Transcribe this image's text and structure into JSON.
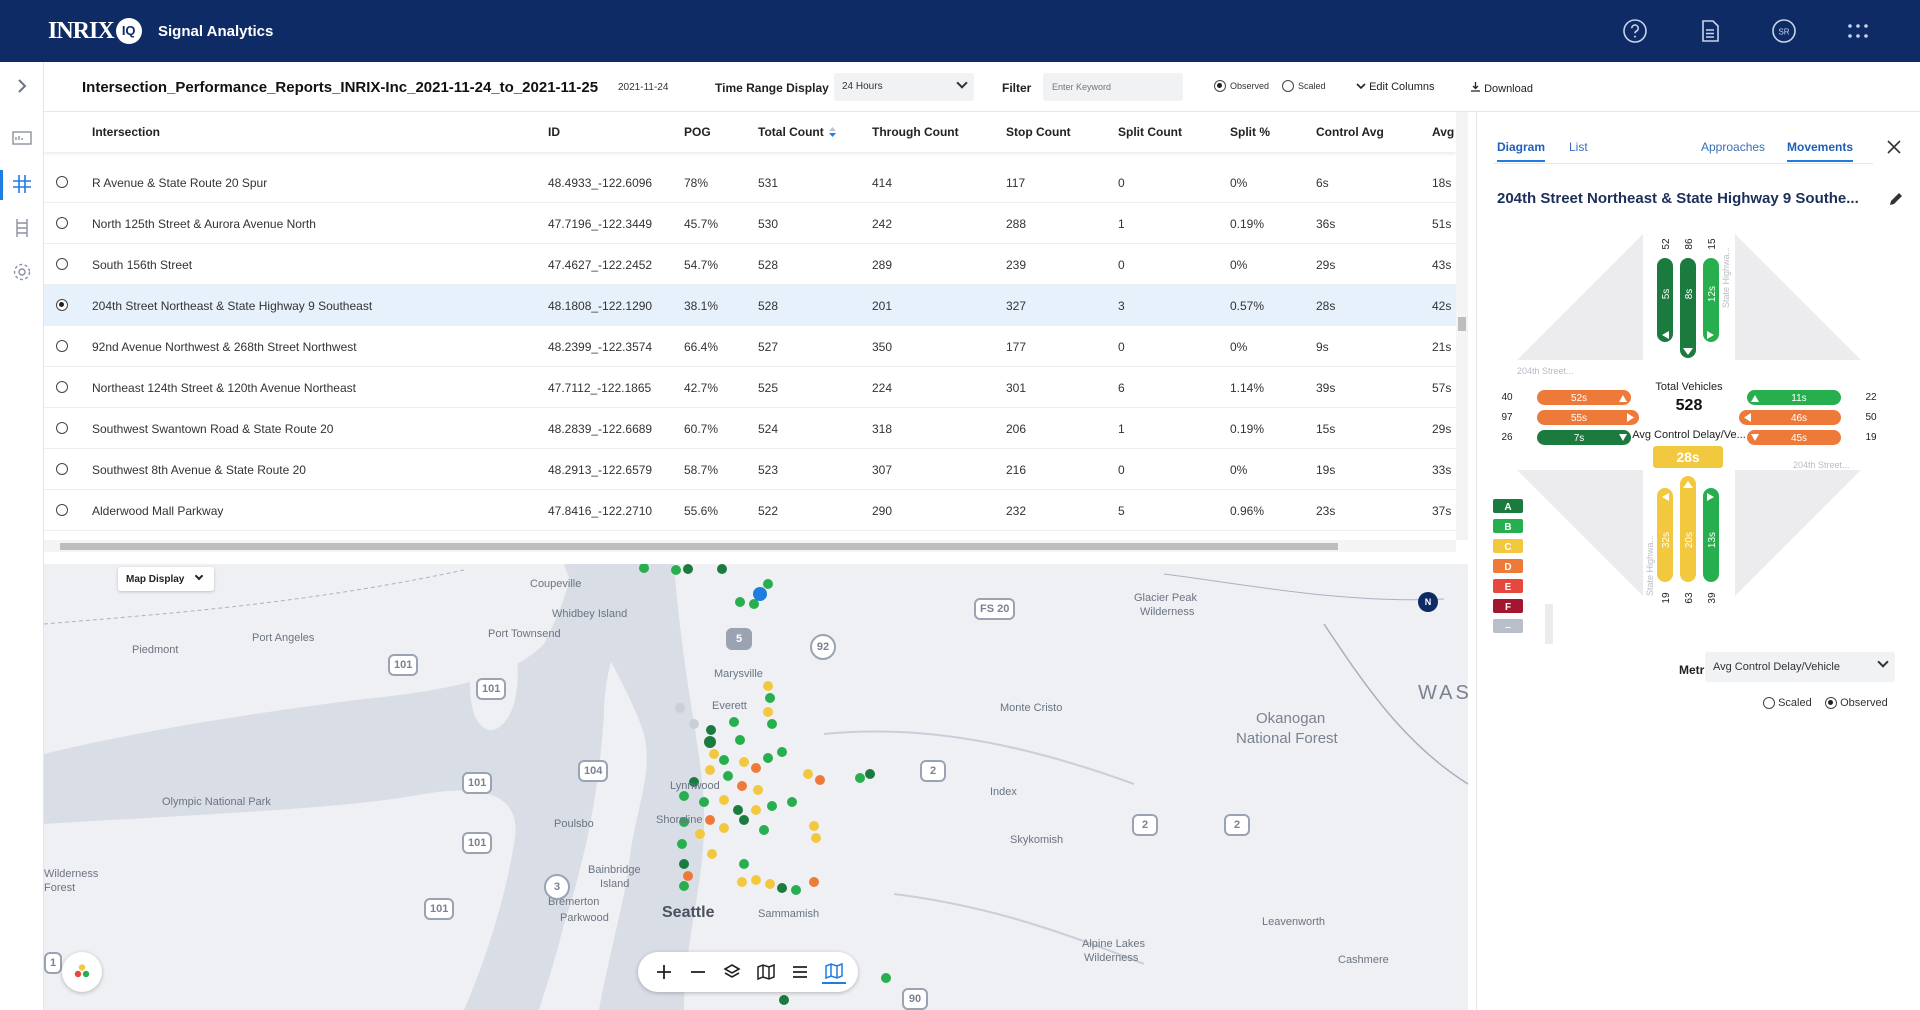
{
  "app": {
    "logo": "INRIX",
    "logo_badge": "IQ",
    "name": "Signal Analytics"
  },
  "toolbar": {
    "title": "Intersection_Performance_Reports_INRIX-Inc_2021-11-24_to_2021-11-25",
    "date": "2021-11-24",
    "time_range_label": "Time Range Display",
    "time_range_value": "24 Hours",
    "filter_label": "Filter",
    "filter_placeholder": "Enter Keyword",
    "observed_label": "Observed",
    "scaled_label": "Scaled",
    "edit_columns": "Edit Columns",
    "download": "Download"
  },
  "table": {
    "columns": [
      "Intersection",
      "ID",
      "POG",
      "Total Count",
      "Through Count",
      "Stop Count",
      "Split Count",
      "Split %",
      "Control Avg",
      "Avg"
    ],
    "rows": [
      {
        "name": "R Avenue & State Route 20 Spur",
        "id": "48.4933_-122.6096",
        "pog": "78%",
        "total": "531",
        "through": "414",
        "stop": "117",
        "split": "0",
        "split_pct": "0%",
        "control": "6s",
        "avg": "18s",
        "selected": false
      },
      {
        "name": "North 125th Street & Aurora Avenue North",
        "id": "47.7196_-122.3449",
        "pog": "45.7%",
        "total": "530",
        "through": "242",
        "stop": "288",
        "split": "1",
        "split_pct": "0.19%",
        "control": "36s",
        "avg": "51s",
        "selected": false
      },
      {
        "name": "South 156th Street",
        "id": "47.4627_-122.2452",
        "pog": "54.7%",
        "total": "528",
        "through": "289",
        "stop": "239",
        "split": "0",
        "split_pct": "0%",
        "control": "29s",
        "avg": "43s",
        "selected": false
      },
      {
        "name": "204th Street Northeast & State Highway 9 Southeast",
        "id": "48.1808_-122.1290",
        "pog": "38.1%",
        "total": "528",
        "through": "201",
        "stop": "327",
        "split": "3",
        "split_pct": "0.57%",
        "control": "28s",
        "avg": "42s",
        "selected": true
      },
      {
        "name": "92nd Avenue Northwest & 268th Street Northwest",
        "id": "48.2399_-122.3574",
        "pog": "66.4%",
        "total": "527",
        "through": "350",
        "stop": "177",
        "split": "0",
        "split_pct": "0%",
        "control": "9s",
        "avg": "21s",
        "selected": false
      },
      {
        "name": "Northeast 124th Street & 120th Avenue Northeast",
        "id": "47.7112_-122.1865",
        "pog": "42.7%",
        "total": "525",
        "through": "224",
        "stop": "301",
        "split": "6",
        "split_pct": "1.14%",
        "control": "39s",
        "avg": "57s",
        "selected": false
      },
      {
        "name": "Southwest Swantown Road & State Route 20",
        "id": "48.2839_-122.6689",
        "pog": "60.7%",
        "total": "524",
        "through": "318",
        "stop": "206",
        "split": "1",
        "split_pct": "0.19%",
        "control": "15s",
        "avg": "29s",
        "selected": false
      },
      {
        "name": "Southwest 8th Avenue & State Route 20",
        "id": "48.2913_-122.6579",
        "pog": "58.7%",
        "total": "523",
        "through": "307",
        "stop": "216",
        "split": "0",
        "split_pct": "0%",
        "control": "19s",
        "avg": "33s",
        "selected": false
      },
      {
        "name": "Alderwood Mall Parkway",
        "id": "47.8416_-122.2710",
        "pog": "55.6%",
        "total": "522",
        "through": "290",
        "stop": "232",
        "split": "5",
        "split_pct": "0.96%",
        "control": "23s",
        "avg": "37s",
        "selected": false
      }
    ]
  },
  "map": {
    "display_label": "Map Display",
    "compass": "N",
    "labels": [
      "Coupeville",
      "Whidbey Island",
      "Port Angeles",
      "Port Townsend",
      "Piedmont",
      "Marysville",
      "Everett",
      "Monte Cristo",
      "Glacier Peak",
      "Wilderness",
      "Olympic National Park",
      "Lynnwood",
      "Shoreline",
      "Poulsbo",
      "Index",
      "Skykomish",
      "Bainbridge",
      "Island",
      "Bremerton",
      "Parkwood",
      "Seattle",
      "Sammamish",
      "Leavenworth",
      "Alpine Lakes",
      "Wilderness",
      "Cashmere",
      "Wilderness",
      "Forest"
    ],
    "region_labels": [
      "Okanogan",
      "National Forest",
      "WAS"
    ],
    "shields": [
      "101",
      "101",
      "101",
      "101",
      "101",
      "104",
      "92",
      "5",
      "2",
      "2",
      "2",
      "3",
      "FS 20",
      "90",
      "1"
    ]
  },
  "panel": {
    "tabs": {
      "diagram": "Diagram",
      "list": "List",
      "approaches": "Approaches",
      "movements": "Movements"
    },
    "title": "204th Street Northeast & State Highway 9 Southe...",
    "street_nw": "204th Street...",
    "street_se": "204th Street...",
    "street_ne": "State Highwa...",
    "street_sw": "State Highwa...",
    "total_vehicles_label": "Total Vehicles",
    "total_vehicles": "528",
    "avg_delay_label": "Avg Control Delay/Ve...",
    "avg_delay": "28s",
    "north": {
      "counts": [
        "52",
        "86",
        "15"
      ],
      "delays": [
        "5s",
        "8s",
        "12s"
      ]
    },
    "south": {
      "counts": [
        "19",
        "63",
        "39"
      ],
      "delays": [
        "32s",
        "20s",
        "13s"
      ]
    },
    "west": {
      "counts": [
        "40",
        "97",
        "26"
      ],
      "delays": [
        "52s",
        "55s",
        "7s"
      ]
    },
    "east": {
      "counts": [
        "22",
        "50",
        "19"
      ],
      "delays": [
        "11s",
        "46s",
        "45s"
      ]
    },
    "grades": [
      "A",
      "B",
      "C",
      "D",
      "E",
      "F",
      "–"
    ],
    "metric_label": "Metric",
    "metric_value": "Avg Control Delay/Vehicle",
    "scaled_label": "Scaled",
    "observed_label": "Observed"
  },
  "colors": {
    "header": "#0f2b66",
    "accent": "#1f7ce0",
    "grade_a": "#1b7a3e",
    "grade_b": "#27ae4f",
    "grade_c": "#f2c83f",
    "grade_d": "#ee7a3a",
    "grade_e": "#e5493d",
    "grade_f": "#a3162f",
    "grade_na": "#b9bfc9"
  }
}
